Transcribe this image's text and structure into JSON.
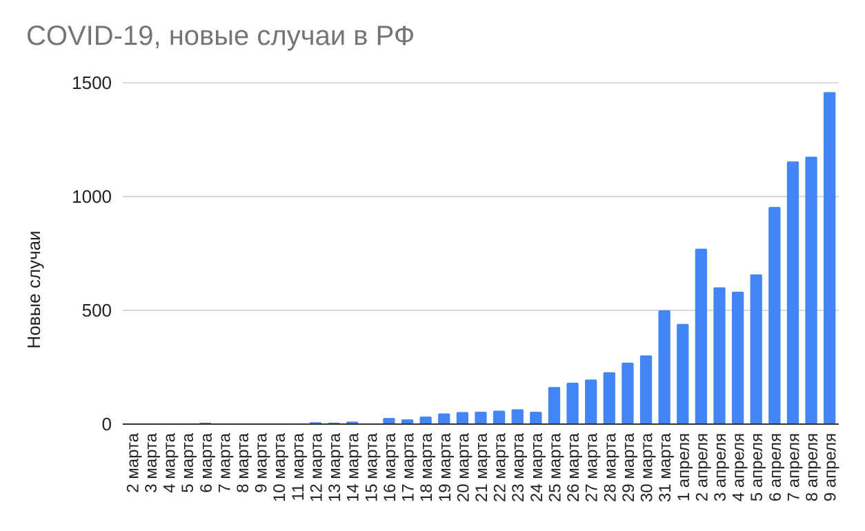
{
  "chart_data": {
    "type": "bar",
    "title": "COVID-19, новые случаи в РФ",
    "xlabel": "",
    "ylabel": "Новые случаи",
    "ylim": [
      0,
      1500
    ],
    "yticks": [
      0,
      500,
      1000,
      1500
    ],
    "grid": true,
    "legend": "none",
    "bar_color": "#4285f4",
    "grid_color": "#cccccc",
    "axis_color": "#333333",
    "categories": [
      "2 марта",
      "3 марта",
      "4 марта",
      "5 марта",
      "6 марта",
      "7 марта",
      "8 марта",
      "9 марта",
      "10 марта",
      "11 марта",
      "12 марта",
      "13 марта",
      "14 марта",
      "15 марта",
      "16 марта",
      "17 марта",
      "18 марта",
      "19 марта",
      "20 марта",
      "21 марта",
      "22 марта",
      "23 марта",
      "24 марта",
      "25 марта",
      "26 марта",
      "27 марта",
      "28 марта",
      "29 марта",
      "30 марта",
      "31 марта",
      "1 апреля",
      "2 апреля",
      "3 апреля",
      "4 апреля",
      "5 апреля",
      "6 апреля",
      "7 апреля",
      "8 апреля",
      "9 апреля"
    ],
    "values": [
      1,
      0,
      0,
      0,
      6,
      0,
      0,
      0,
      3,
      0,
      8,
      6,
      11,
      0,
      27,
      21,
      33,
      47,
      53,
      54,
      59,
      65,
      54,
      163,
      182,
      196,
      228,
      270,
      302,
      500,
      440,
      771,
      601,
      582,
      658,
      954,
      1154,
      1175,
      1459
    ]
  }
}
